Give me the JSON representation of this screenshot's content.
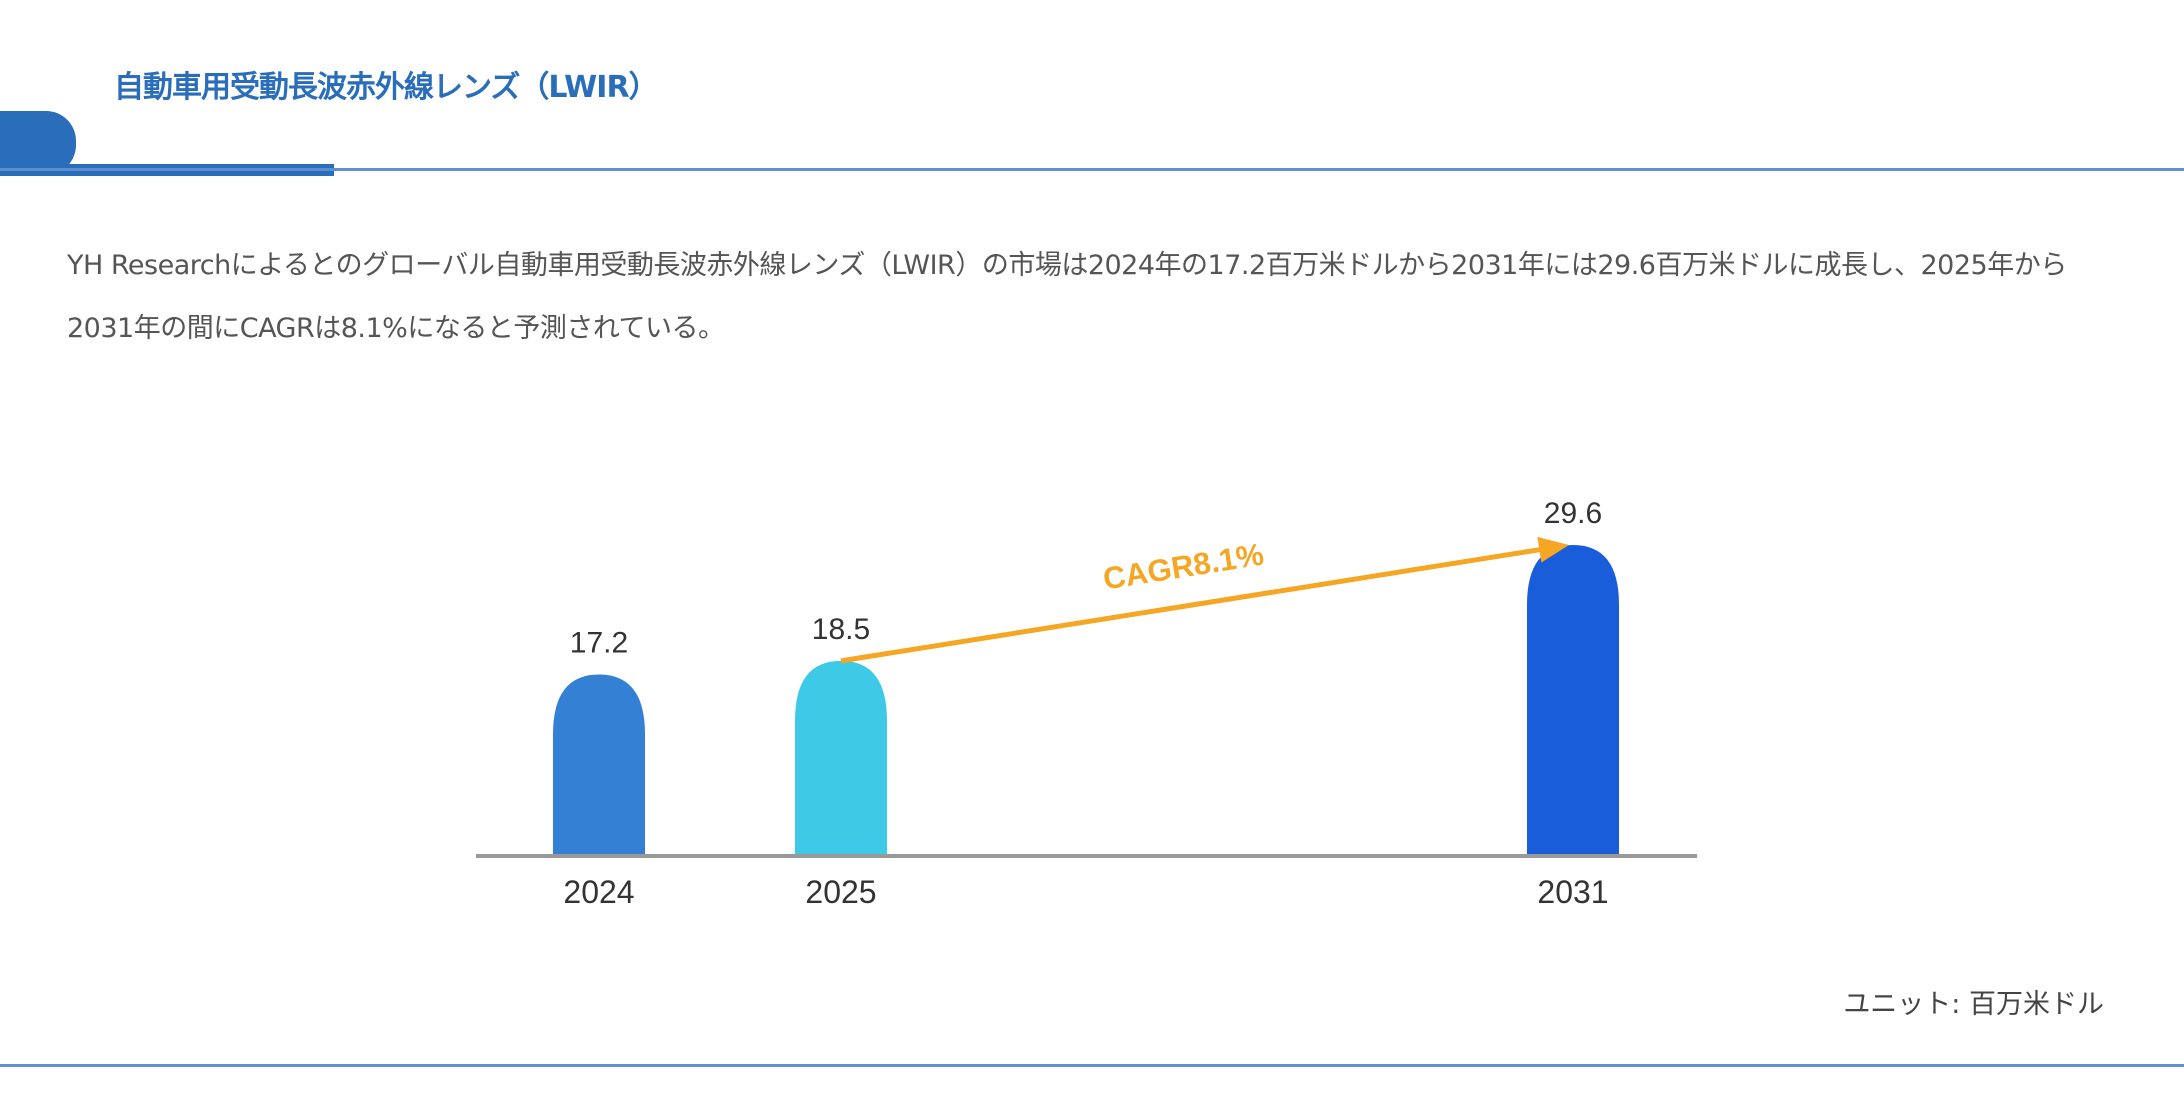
{
  "header": {
    "title": "自動車用受動長波赤外線レンズ（LWIR）"
  },
  "description": "YH Researchによるとのグローバル自動車用受動長波赤外線レンズ（LWIR）の市場は2024年の17.2百万米ドルから2031年には29.6百万米ドルに成長し、2025年から2031年の間にCAGRは8.1%になると予測されている。",
  "unit_label": "ユニット: 百万米ドル",
  "colors": {
    "accent": "#2a6ebb",
    "arrow": "#f5a623"
  },
  "chart_data": {
    "type": "bar",
    "categories": [
      "2024",
      "2025",
      "2031"
    ],
    "values": [
      17.2,
      18.5,
      29.6
    ],
    "value_labels": [
      "17.2",
      "18.5",
      "29.6"
    ],
    "bar_colors": [
      "#3380d4",
      "#3ec9e6",
      "#1a5ddb"
    ],
    "annotation": {
      "text": "CAGR8.1%",
      "from": "2025",
      "to": "2031"
    },
    "ylim": [
      0,
      29.6
    ],
    "grid": false,
    "unit": "百万米ドル"
  }
}
